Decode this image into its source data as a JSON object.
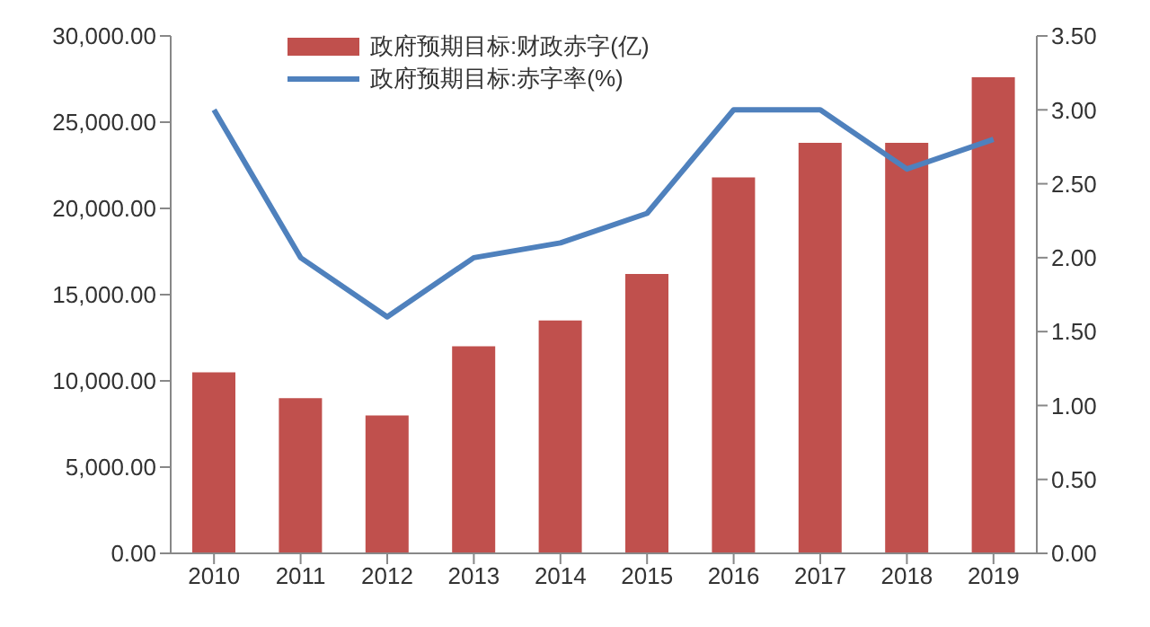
{
  "chart_data": {
    "type": "bar",
    "categories": [
      "2010",
      "2011",
      "2012",
      "2013",
      "2014",
      "2015",
      "2016",
      "2017",
      "2018",
      "2019"
    ],
    "series": [
      {
        "name": "政府预期目标:财政赤字(亿)",
        "color": "#c0504d",
        "values": [
          10500,
          9000,
          8000,
          12000,
          13500,
          16200,
          21800,
          23800,
          23800,
          27600
        ]
      },
      {
        "name": "政府预期目标:赤字率(%)",
        "type": "line",
        "axis": "y2",
        "color": "#4f81bd",
        "values": [
          3.0,
          2.0,
          1.6,
          2.0,
          2.1,
          2.3,
          3.0,
          3.0,
          2.6,
          2.8
        ]
      }
    ],
    "ylim": [
      0,
      30000
    ],
    "yticks": [
      {
        "value": 0,
        "label": "0.00"
      },
      {
        "value": 5000,
        "label": "5,000.00"
      },
      {
        "value": 10000,
        "label": "10,000.00"
      },
      {
        "value": 15000,
        "label": "15,000.00"
      },
      {
        "value": 20000,
        "label": "20,000.00"
      },
      {
        "value": 25000,
        "label": "25,000.00"
      },
      {
        "value": 30000,
        "label": "30,000.00"
      }
    ],
    "y2lim": [
      0,
      3.5
    ],
    "y2ticks": [
      {
        "value": 0,
        "label": "0.00"
      },
      {
        "value": 0.5,
        "label": "0.50"
      },
      {
        "value": 1,
        "label": "1.00"
      },
      {
        "value": 1.5,
        "label": "1.50"
      },
      {
        "value": 2,
        "label": "2.00"
      },
      {
        "value": 2.5,
        "label": "2.50"
      },
      {
        "value": 3,
        "label": "3.00"
      },
      {
        "value": 3.5,
        "label": "3.50"
      }
    ],
    "grid": false,
    "legend": "top left",
    "marker": "none"
  }
}
